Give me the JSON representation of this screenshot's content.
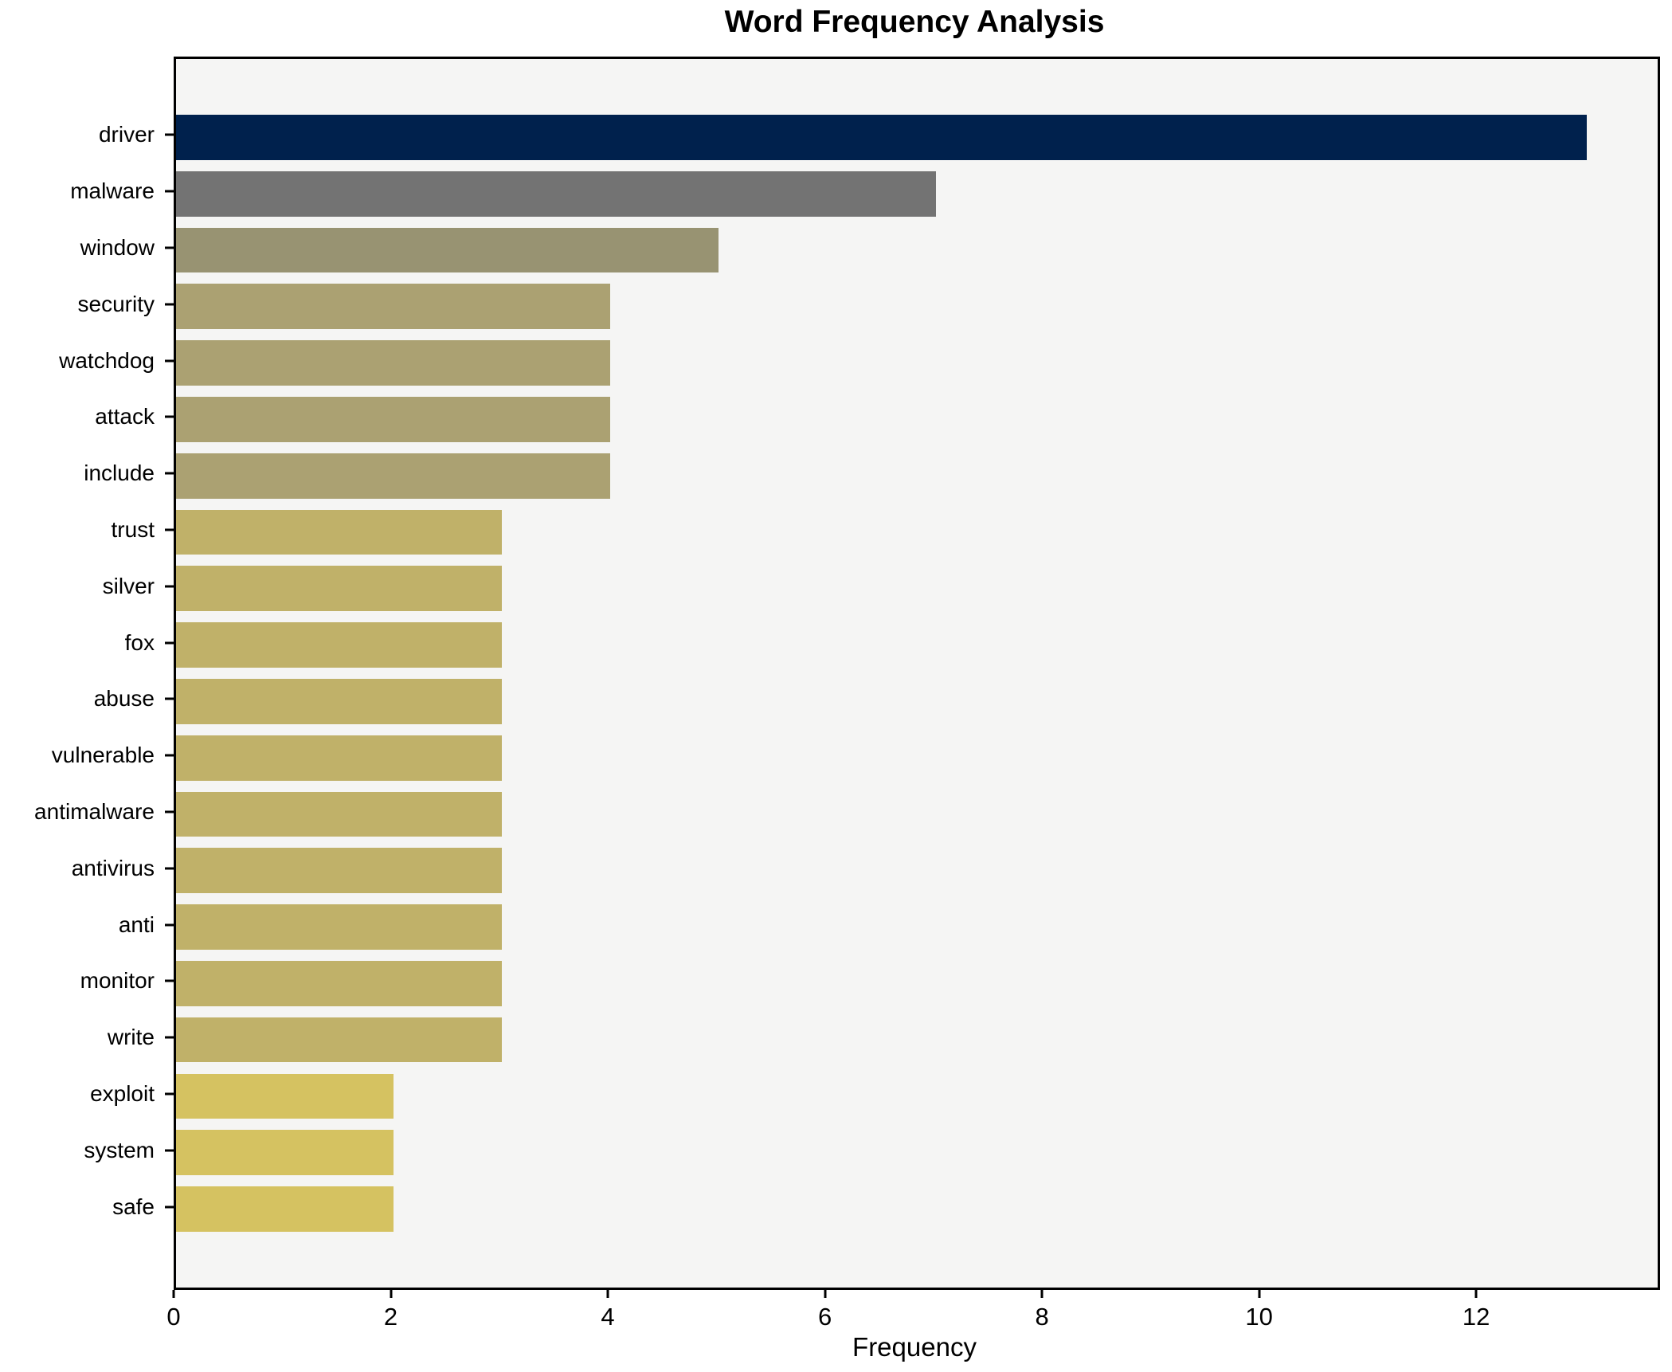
{
  "chart_data": {
    "type": "bar",
    "orientation": "horizontal",
    "title": "Word Frequency Analysis",
    "xlabel": "Frequency",
    "ylabel": "",
    "categories": [
      "driver",
      "malware",
      "window",
      "security",
      "watchdog",
      "attack",
      "include",
      "trust",
      "silver",
      "fox",
      "abuse",
      "vulnerable",
      "antimalware",
      "antivirus",
      "anti",
      "monitor",
      "write",
      "exploit",
      "system",
      "safe"
    ],
    "values": [
      13,
      7,
      5,
      4,
      4,
      4,
      4,
      3,
      3,
      3,
      3,
      3,
      3,
      3,
      3,
      3,
      3,
      2,
      2,
      2
    ],
    "colors": [
      "#00214d",
      "#737373",
      "#989372",
      "#aba172",
      "#aba172",
      "#aba172",
      "#aba172",
      "#c0b169",
      "#c0b169",
      "#c0b169",
      "#c0b169",
      "#c0b169",
      "#c0b169",
      "#c0b169",
      "#c0b169",
      "#c0b169",
      "#c0b169",
      "#d5c261",
      "#d5c261",
      "#d5c261"
    ],
    "xticks": [
      0,
      2,
      4,
      6,
      8,
      10,
      12
    ],
    "xlim": [
      0,
      13.65
    ],
    "grid": false,
    "legend": false,
    "plot_bg": "#f5f5f4",
    "figure_bg": "#ffffff",
    "spine_color": "#000000",
    "bar_height_fraction": 0.8
  }
}
